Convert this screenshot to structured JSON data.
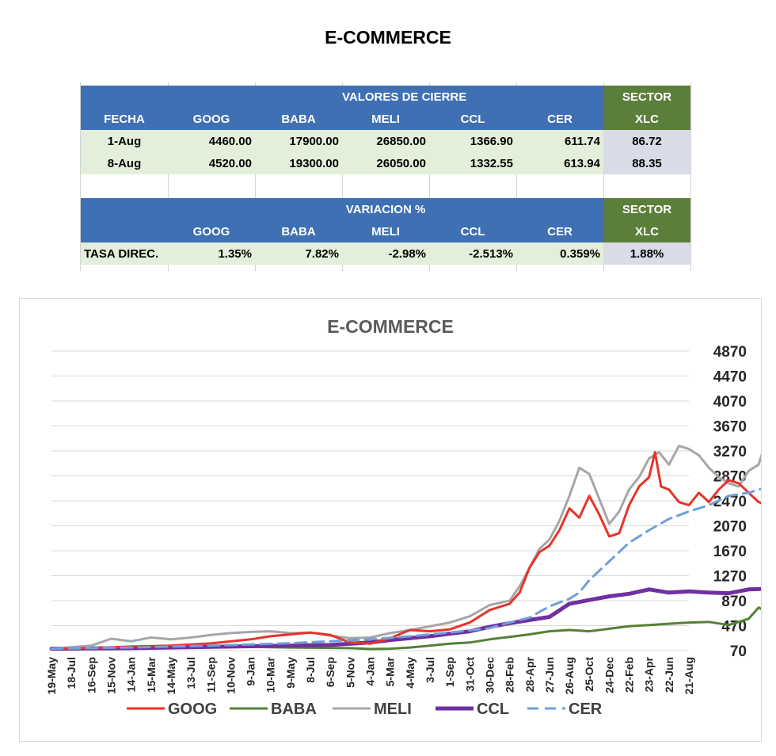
{
  "page_title": "E-COMMERCE",
  "table1": {
    "group_header": "VALORES DE CIERRE",
    "sector_header": [
      "SECTOR",
      "XLC"
    ],
    "columns": [
      "FECHA",
      "GOOG",
      "BABA",
      "MELI",
      "CCL",
      "CER"
    ],
    "rows": [
      {
        "fecha": "1-Aug",
        "goog": "4460.00",
        "baba": "17900.00",
        "meli": "26850.00",
        "ccl": "1366.90",
        "cer": "611.74",
        "xlc": "86.72"
      },
      {
        "fecha": "8-Aug",
        "goog": "4520.00",
        "baba": "19300.00",
        "meli": "26050.00",
        "ccl": "1332.55",
        "cer": "613.94",
        "xlc": "88.35"
      }
    ]
  },
  "table2": {
    "group_header": "VARIACION %",
    "sector_header": [
      "SECTOR",
      "XLC"
    ],
    "columns": [
      "GOOG",
      "BABA",
      "MELI",
      "CCL",
      "CER"
    ],
    "row": {
      "label": "TASA DIREC.",
      "goog": "1.35%",
      "baba": "7.82%",
      "meli": "-2.98%",
      "ccl": "-2.513%",
      "cer": "0.359%",
      "xlc": "1.88%"
    }
  },
  "chart_data": {
    "type": "line",
    "title": "E-COMMERCE",
    "xlabel": "",
    "ylabel": "",
    "ylim": [
      70,
      4870
    ],
    "y_ticks": [
      4870,
      4470,
      4070,
      3670,
      3270,
      2870,
      2470,
      2070,
      1670,
      1270,
      870,
      470,
      70
    ],
    "x_ticks": [
      "19-May",
      "18-Jul",
      "16-Sep",
      "15-Nov",
      "14-Jan",
      "15-Mar",
      "14-May",
      "13-Jul",
      "11-Sep",
      "10-Nov",
      "9-Jan",
      "10-Mar",
      "9-May",
      "8-Jul",
      "6-Sep",
      "5-Nov",
      "4-Jan",
      "5-Mar",
      "4-May",
      "3-Jul",
      "1-Sep",
      "31-Oct",
      "30-Dec",
      "28-Feb",
      "28-Apr",
      "27-Jun",
      "26-Aug",
      "25-Oct",
      "24-Dec",
      "22-Feb",
      "23-Apr",
      "22-Jun",
      "21-Aug"
    ],
    "grid": true,
    "legend_position": "bottom",
    "series": [
      {
        "name": "GOOG",
        "color": "#e8332a",
        "style": "solid",
        "width": 3,
        "values": [
          [
            0,
            100
          ],
          [
            2,
            110
          ],
          [
            4,
            135
          ],
          [
            6,
            150
          ],
          [
            8,
            185
          ],
          [
            10,
            250
          ],
          [
            11,
            300
          ],
          [
            12,
            330
          ],
          [
            13,
            360
          ],
          [
            14,
            320
          ],
          [
            15,
            200
          ],
          [
            16,
            180
          ],
          [
            17,
            270
          ],
          [
            18,
            400
          ],
          [
            19,
            380
          ],
          [
            20,
            410
          ],
          [
            21,
            520
          ],
          [
            22,
            720
          ],
          [
            23,
            820
          ],
          [
            23.5,
            1000
          ],
          [
            24,
            1400
          ],
          [
            24.5,
            1650
          ],
          [
            25,
            1750
          ],
          [
            25.5,
            2000
          ],
          [
            26,
            2350
          ],
          [
            26.5,
            2200
          ],
          [
            27,
            2550
          ],
          [
            27.5,
            2250
          ],
          [
            28,
            1900
          ],
          [
            28.5,
            1950
          ],
          [
            29,
            2400
          ],
          [
            29.5,
            2700
          ],
          [
            30,
            2850
          ],
          [
            30.3,
            3250
          ],
          [
            30.6,
            2700
          ],
          [
            31,
            2650
          ],
          [
            31.5,
            2450
          ],
          [
            32,
            2400
          ],
          [
            32.5,
            2600
          ],
          [
            33,
            2450
          ],
          [
            33.5,
            2650
          ],
          [
            34,
            2800
          ],
          [
            34.5,
            2750
          ],
          [
            35,
            2600
          ],
          [
            35.5,
            2450
          ],
          [
            36,
            2400
          ],
          [
            36.3,
            2130
          ],
          [
            36.6,
            2300
          ],
          [
            37,
            2400
          ],
          [
            37.5,
            2550
          ],
          [
            38,
            2450
          ],
          [
            38.5,
            2900
          ],
          [
            39,
            3300
          ]
        ]
      },
      {
        "name": "BABA",
        "color": "#548235",
        "style": "solid",
        "width": 3,
        "values": [
          [
            0,
            100
          ],
          [
            4,
            110
          ],
          [
            8,
            140
          ],
          [
            12,
            120
          ],
          [
            15,
            110
          ],
          [
            16,
            95
          ],
          [
            17,
            100
          ],
          [
            18,
            120
          ],
          [
            19,
            150
          ],
          [
            20,
            180
          ],
          [
            21,
            200
          ],
          [
            22,
            250
          ],
          [
            23,
            290
          ],
          [
            24,
            330
          ],
          [
            25,
            380
          ],
          [
            26,
            400
          ],
          [
            27,
            380
          ],
          [
            28,
            420
          ],
          [
            29,
            460
          ],
          [
            30,
            480
          ],
          [
            31,
            500
          ],
          [
            32,
            520
          ],
          [
            33,
            530
          ],
          [
            34,
            480
          ],
          [
            35,
            580
          ],
          [
            35.5,
            760
          ],
          [
            36,
            680
          ],
          [
            37,
            640
          ],
          [
            38,
            620
          ],
          [
            39,
            700
          ]
        ]
      },
      {
        "name": "MELI",
        "color": "#a6a6a6",
        "style": "solid",
        "width": 3,
        "values": [
          [
            0,
            100
          ],
          [
            2,
            150
          ],
          [
            3,
            260
          ],
          [
            4,
            220
          ],
          [
            5,
            280
          ],
          [
            6,
            250
          ],
          [
            7,
            280
          ],
          [
            8,
            320
          ],
          [
            9,
            350
          ],
          [
            10,
            370
          ],
          [
            11,
            380
          ],
          [
            12,
            350
          ],
          [
            13,
            360
          ],
          [
            14,
            310
          ],
          [
            15,
            270
          ],
          [
            16,
            280
          ],
          [
            17,
            350
          ],
          [
            18,
            400
          ],
          [
            19,
            460
          ],
          [
            20,
            520
          ],
          [
            21,
            620
          ],
          [
            22,
            800
          ],
          [
            23,
            870
          ],
          [
            23.5,
            1100
          ],
          [
            24,
            1400
          ],
          [
            24.5,
            1700
          ],
          [
            25,
            1850
          ],
          [
            25.5,
            2150
          ],
          [
            26,
            2550
          ],
          [
            26.5,
            3000
          ],
          [
            27,
            2900
          ],
          [
            27.5,
            2500
          ],
          [
            28,
            2100
          ],
          [
            28.5,
            2300
          ],
          [
            29,
            2650
          ],
          [
            29.5,
            2850
          ],
          [
            30,
            3150
          ],
          [
            30.5,
            3250
          ],
          [
            31,
            3050
          ],
          [
            31.5,
            3350
          ],
          [
            32,
            3300
          ],
          [
            32.5,
            3200
          ],
          [
            33,
            3000
          ],
          [
            33.5,
            2850
          ],
          [
            34,
            2750
          ],
          [
            34.5,
            2700
          ],
          [
            35,
            2950
          ],
          [
            35.5,
            3050
          ],
          [
            36,
            3550
          ],
          [
            36.5,
            3350
          ],
          [
            37,
            3600
          ],
          [
            37.5,
            3900
          ],
          [
            38,
            4050
          ],
          [
            38.5,
            4000
          ],
          [
            39,
            4200
          ]
        ]
      },
      {
        "name": "CCL",
        "color": "#7030a0",
        "style": "solid",
        "width": 5,
        "values": [
          [
            0,
            100
          ],
          [
            4,
            110
          ],
          [
            8,
            130
          ],
          [
            12,
            150
          ],
          [
            14,
            160
          ],
          [
            16,
            200
          ],
          [
            17,
            240
          ],
          [
            18,
            270
          ],
          [
            19,
            300
          ],
          [
            20,
            340
          ],
          [
            21,
            380
          ],
          [
            22,
            450
          ],
          [
            23,
            510
          ],
          [
            24,
            560
          ],
          [
            25,
            610
          ],
          [
            26,
            820
          ],
          [
            27,
            880
          ],
          [
            28,
            940
          ],
          [
            29,
            980
          ],
          [
            30,
            1050
          ],
          [
            31,
            1000
          ],
          [
            32,
            1020
          ],
          [
            33,
            1000
          ],
          [
            34,
            990
          ],
          [
            35,
            1050
          ],
          [
            36,
            1060
          ],
          [
            36.5,
            1150
          ],
          [
            37,
            1050
          ],
          [
            38,
            1060
          ],
          [
            39,
            1100
          ]
        ]
      },
      {
        "name": "CER",
        "color": "#6fa0d8",
        "style": "dashed",
        "width": 3,
        "values": [
          [
            0,
            100
          ],
          [
            4,
            120
          ],
          [
            8,
            150
          ],
          [
            12,
            190
          ],
          [
            16,
            250
          ],
          [
            18,
            300
          ],
          [
            20,
            360
          ],
          [
            22,
            430
          ],
          [
            23,
            520
          ],
          [
            24,
            600
          ],
          [
            25,
            780
          ],
          [
            26,
            900
          ],
          [
            26.5,
            1000
          ],
          [
            27,
            1200
          ],
          [
            28,
            1500
          ],
          [
            29,
            1800
          ],
          [
            30,
            2000
          ],
          [
            31,
            2180
          ],
          [
            32,
            2300
          ],
          [
            33,
            2400
          ],
          [
            34,
            2550
          ],
          [
            35,
            2600
          ],
          [
            36,
            2700
          ],
          [
            37,
            2800
          ],
          [
            38,
            2870
          ],
          [
            39,
            2920
          ]
        ]
      }
    ]
  }
}
